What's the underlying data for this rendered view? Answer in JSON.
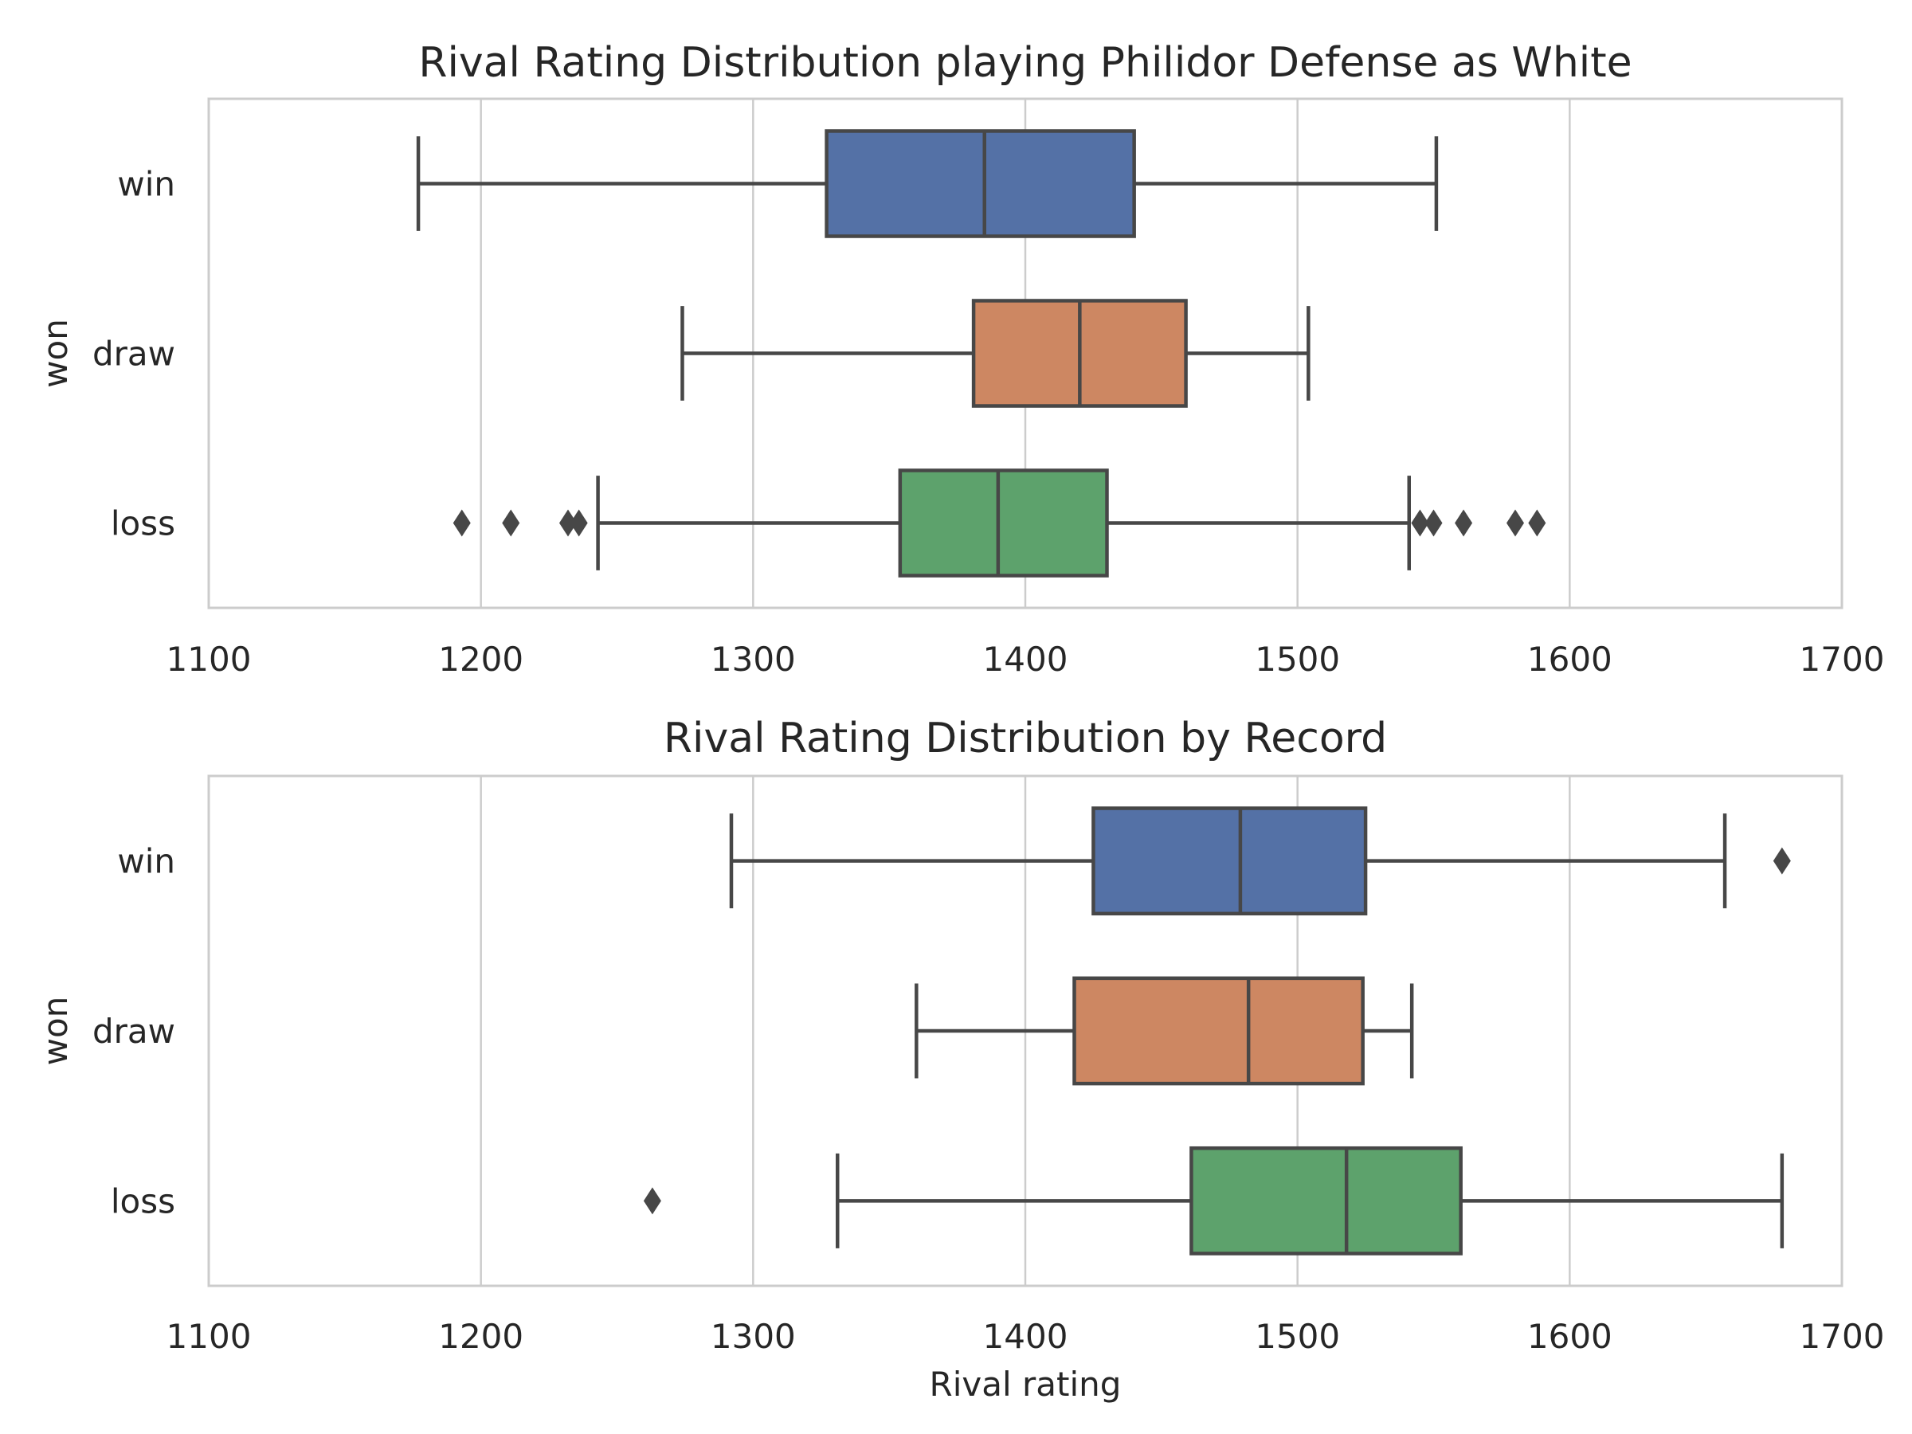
{
  "chart_data": [
    {
      "type": "boxplot",
      "orientation": "horizontal",
      "title": "Rival Rating Distribution playing Philidor Defense as White",
      "xlabel": "",
      "ylabel": "won",
      "xlim": [
        1100,
        1700
      ],
      "xticks": [
        "1100",
        "1200",
        "1300",
        "1400",
        "1500",
        "1600",
        "1700"
      ],
      "grid": "vertical",
      "categories": [
        "win",
        "draw",
        "loss"
      ],
      "colors": [
        "#5471a6",
        "#cd8762",
        "#5da26c"
      ],
      "series": [
        {
          "category": "win",
          "whisker_low": 1177,
          "q1": 1327,
          "median": 1385,
          "q3": 1440,
          "whisker_high": 1551,
          "outliers": []
        },
        {
          "category": "draw",
          "whisker_low": 1274,
          "q1": 1381,
          "median": 1420,
          "q3": 1459,
          "whisker_high": 1504,
          "outliers": []
        },
        {
          "category": "loss",
          "whisker_low": 1243,
          "q1": 1354,
          "median": 1390,
          "q3": 1430,
          "whisker_high": 1541,
          "outliers": [
            1193,
            1211,
            1232,
            1236,
            1545,
            1550,
            1561,
            1580,
            1588
          ]
        }
      ]
    },
    {
      "type": "boxplot",
      "orientation": "horizontal",
      "title": "Rival Rating Distribution by Record",
      "xlabel": "Rival rating",
      "ylabel": "won",
      "xlim": [
        1100,
        1700
      ],
      "xticks": [
        "1100",
        "1200",
        "1300",
        "1400",
        "1500",
        "1600",
        "1700"
      ],
      "grid": "vertical",
      "categories": [
        "win",
        "draw",
        "loss"
      ],
      "colors": [
        "#5471a6",
        "#cd8762",
        "#5da26c"
      ],
      "series": [
        {
          "category": "win",
          "whisker_low": 1292,
          "q1": 1425,
          "median": 1479,
          "q3": 1525,
          "whisker_high": 1657,
          "outliers": [
            1678
          ]
        },
        {
          "category": "draw",
          "whisker_low": 1360,
          "q1": 1418,
          "median": 1482,
          "q3": 1524,
          "whisker_high": 1542,
          "outliers": []
        },
        {
          "category": "loss",
          "whisker_low": 1331,
          "q1": 1461,
          "median": 1518,
          "q3": 1560,
          "whisker_high": 1678,
          "outliers": [
            1263
          ]
        }
      ]
    }
  ]
}
